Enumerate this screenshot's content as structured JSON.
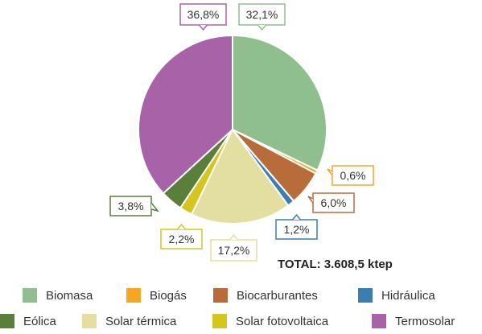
{
  "chart_data": {
    "type": "pie",
    "total": "TOTAL: 3.608,5 ktep",
    "slices": [
      {
        "name": "Biomasa",
        "value": 32.1,
        "label": "32,1%",
        "color": "#8fbf8f"
      },
      {
        "name": "Biogás",
        "value": 0.6,
        "label": "0,6%",
        "color": "#f5a623"
      },
      {
        "name": "Biocarburantes",
        "value": 6.0,
        "label": "6,0%",
        "color": "#b86c3a"
      },
      {
        "name": "Hidráulica",
        "value": 1.2,
        "label": "1,2%",
        "color": "#3a7fb0"
      },
      {
        "name": "Solar térmica",
        "value": 17.2,
        "label": "17,2%",
        "color": "#e3dfa0"
      },
      {
        "name": "Solar fotovoltaica",
        "value": 2.2,
        "label": "2,2%",
        "color": "#d4c51f"
      },
      {
        "name": "Eólica",
        "value": 3.8,
        "label": "3,8%",
        "color": "#5a7f3a"
      },
      {
        "name": "Termosolar",
        "value": 36.8,
        "label": "36,8%",
        "color": "#a862a8"
      }
    ],
    "legend": {
      "row1": [
        "Biomasa",
        "Biogás",
        "Biocarburantes",
        "Hidráulica"
      ],
      "row2": [
        "Eólica",
        "Solar térmica",
        "Solar fotovoltaica",
        "Termosolar"
      ]
    }
  }
}
